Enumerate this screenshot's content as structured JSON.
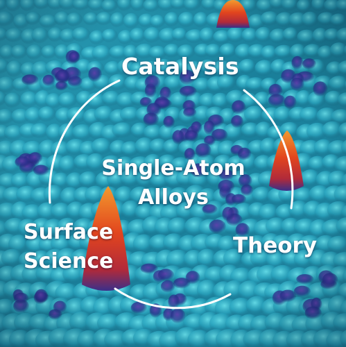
{
  "labels": {
    "top": "Catalysis",
    "center_line1": "Single-Atom",
    "center_line2": "Alloys",
    "left_line1": "Surface",
    "left_line2": "Science",
    "right": "Theory"
  },
  "colors": {
    "surface_base": "#1a7f9a",
    "surface_light": "#3fc4d8",
    "atom_dark": "#2a2f8c",
    "peak_red": "#e2451e",
    "peak_orange": "#f08a24",
    "ring": "#ffffff",
    "text": "#ffffff"
  }
}
